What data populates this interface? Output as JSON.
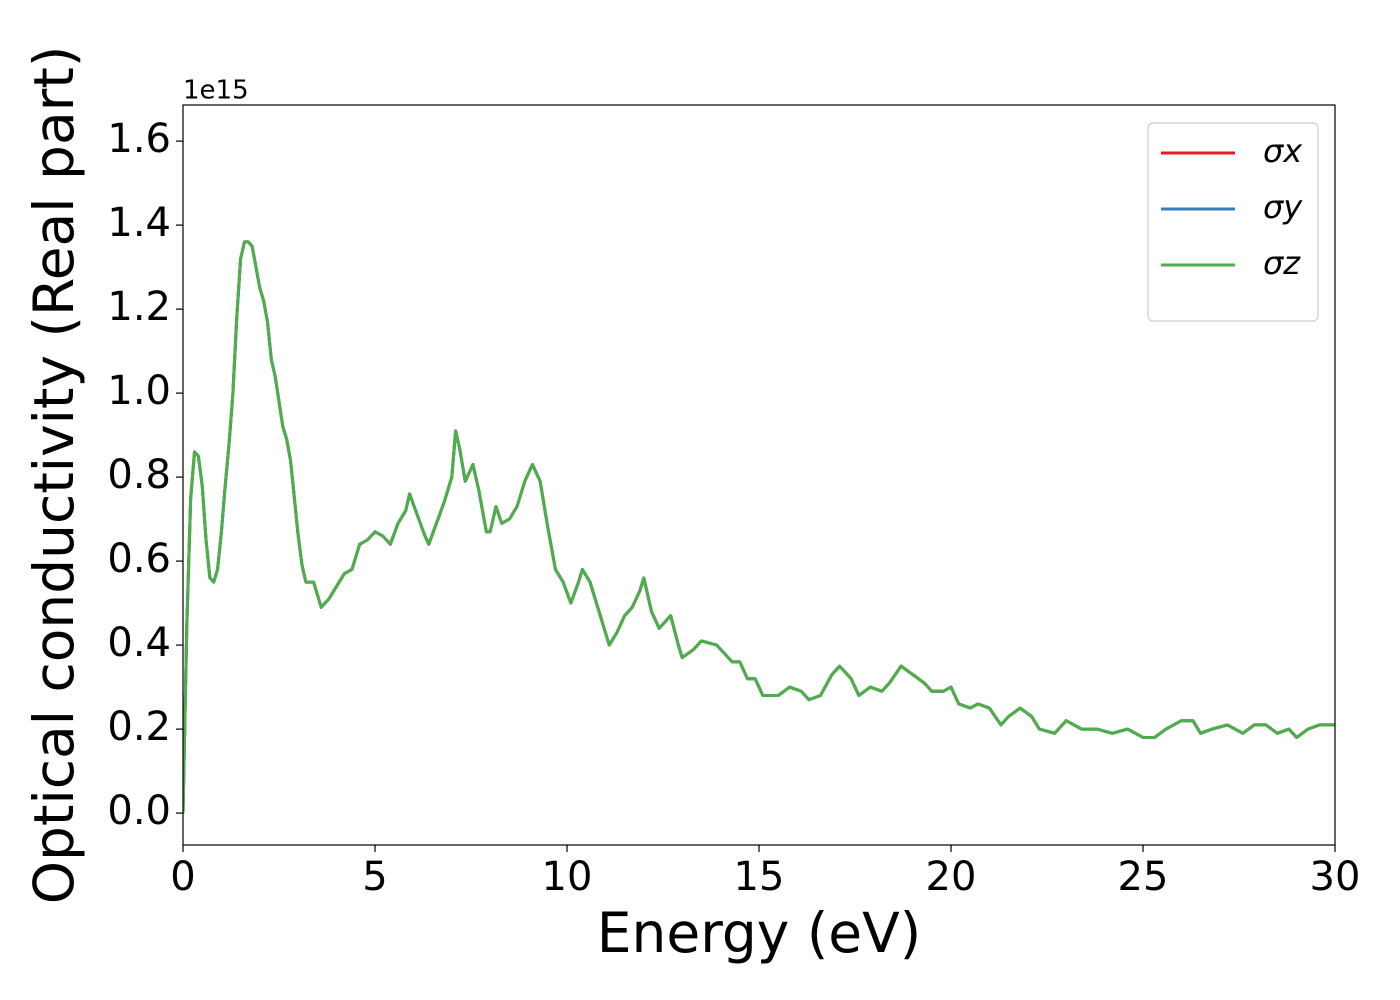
{
  "chart_data": {
    "type": "line",
    "xlabel": "Energy (eV)",
    "ylabel": "Optical conductivity (Real part)",
    "y_offset_label": "1e15",
    "x": [
      0,
      0.1,
      0.2,
      0.3,
      0.4,
      0.5,
      0.6,
      0.7,
      0.8,
      0.9,
      1.0,
      1.1,
      1.2,
      1.3,
      1.4,
      1.5,
      1.6,
      1.7,
      1.8,
      1.9,
      2.0,
      2.1,
      2.2,
      2.3,
      2.4,
      2.5,
      2.6,
      2.7,
      2.8,
      2.9,
      3.0,
      3.1,
      3.2,
      3.4,
      3.6,
      3.8,
      4.0,
      4.2,
      4.4,
      4.6,
      4.8,
      5.0,
      5.2,
      5.4,
      5.6,
      5.8,
      5.9,
      6.1,
      6.3,
      6.4,
      6.6,
      6.8,
      7.0,
      7.1,
      7.2,
      7.35,
      7.55,
      7.7,
      7.9,
      8.0,
      8.15,
      8.3,
      8.5,
      8.7,
      8.9,
      9.1,
      9.3,
      9.5,
      9.7,
      9.9,
      10.1,
      10.3,
      10.4,
      10.6,
      10.8,
      11.0,
      11.1,
      11.3,
      11.5,
      11.7,
      11.9,
      12.0,
      12.2,
      12.4,
      12.7,
      12.9,
      13.0,
      13.3,
      13.5,
      13.9,
      14.1,
      14.3,
      14.5,
      14.7,
      14.9,
      15.1,
      15.5,
      15.8,
      16.1,
      16.3,
      16.6,
      16.9,
      17.1,
      17.4,
      17.6,
      17.9,
      18.2,
      18.4,
      18.7,
      19.0,
      19.3,
      19.5,
      19.8,
      20.0,
      20.2,
      20.5,
      20.7,
      21.0,
      21.3,
      21.5,
      21.8,
      22.1,
      22.3,
      22.7,
      23.0,
      23.4,
      23.8,
      24.2,
      24.6,
      25.0,
      25.3,
      25.6,
      26.0,
      26.3,
      26.5,
      26.8,
      27.2,
      27.6,
      27.9,
      28.2,
      28.5,
      28.8,
      29.0,
      29.3,
      29.6,
      29.8,
      30.0
    ],
    "series": [
      {
        "name": "σx",
        "color": "#e41a1c",
        "values": [
          0,
          0.45,
          0.75,
          0.86,
          0.85,
          0.78,
          0.65,
          0.56,
          0.55,
          0.58,
          0.67,
          0.78,
          0.88,
          1.0,
          1.18,
          1.32,
          1.36,
          1.36,
          1.35,
          1.3,
          1.25,
          1.22,
          1.17,
          1.08,
          1.04,
          0.98,
          0.92,
          0.89,
          0.84,
          0.75,
          0.66,
          0.59,
          0.55,
          0.55,
          0.49,
          0.51,
          0.54,
          0.57,
          0.58,
          0.64,
          0.65,
          0.67,
          0.66,
          0.64,
          0.69,
          0.72,
          0.76,
          0.71,
          0.66,
          0.64,
          0.69,
          0.74,
          0.8,
          0.91,
          0.87,
          0.79,
          0.83,
          0.77,
          0.67,
          0.67,
          0.73,
          0.69,
          0.7,
          0.73,
          0.79,
          0.83,
          0.79,
          0.68,
          0.58,
          0.55,
          0.5,
          0.55,
          0.58,
          0.55,
          0.49,
          0.43,
          0.4,
          0.43,
          0.47,
          0.49,
          0.53,
          0.56,
          0.48,
          0.44,
          0.47,
          0.4,
          0.37,
          0.39,
          0.41,
          0.4,
          0.38,
          0.36,
          0.36,
          0.32,
          0.32,
          0.28,
          0.28,
          0.3,
          0.29,
          0.27,
          0.28,
          0.33,
          0.35,
          0.32,
          0.28,
          0.3,
          0.29,
          0.31,
          0.35,
          0.33,
          0.31,
          0.29,
          0.29,
          0.3,
          0.26,
          0.25,
          0.26,
          0.25,
          0.21,
          0.23,
          0.25,
          0.23,
          0.2,
          0.19,
          0.22,
          0.2,
          0.2,
          0.19,
          0.2,
          0.18,
          0.18,
          0.2,
          0.22,
          0.22,
          0.19,
          0.2,
          0.21,
          0.19,
          0.21,
          0.21,
          0.19,
          0.2,
          0.18,
          0.2,
          0.21,
          0.21,
          0.21
        ]
      },
      {
        "name": "σy",
        "color": "#377eb8",
        "values": [
          0,
          0.45,
          0.75,
          0.86,
          0.85,
          0.78,
          0.65,
          0.56,
          0.55,
          0.58,
          0.67,
          0.78,
          0.88,
          1.0,
          1.18,
          1.32,
          1.36,
          1.36,
          1.35,
          1.3,
          1.25,
          1.22,
          1.17,
          1.08,
          1.04,
          0.98,
          0.92,
          0.89,
          0.84,
          0.75,
          0.66,
          0.59,
          0.55,
          0.55,
          0.49,
          0.51,
          0.54,
          0.57,
          0.58,
          0.64,
          0.65,
          0.67,
          0.66,
          0.64,
          0.69,
          0.72,
          0.76,
          0.71,
          0.66,
          0.64,
          0.69,
          0.74,
          0.8,
          0.91,
          0.87,
          0.79,
          0.83,
          0.77,
          0.67,
          0.67,
          0.73,
          0.69,
          0.7,
          0.73,
          0.79,
          0.83,
          0.79,
          0.68,
          0.58,
          0.55,
          0.5,
          0.55,
          0.58,
          0.55,
          0.49,
          0.43,
          0.4,
          0.43,
          0.47,
          0.49,
          0.53,
          0.56,
          0.48,
          0.44,
          0.47,
          0.4,
          0.37,
          0.39,
          0.41,
          0.4,
          0.38,
          0.36,
          0.36,
          0.32,
          0.32,
          0.28,
          0.28,
          0.3,
          0.29,
          0.27,
          0.28,
          0.33,
          0.35,
          0.32,
          0.28,
          0.3,
          0.29,
          0.31,
          0.35,
          0.33,
          0.31,
          0.29,
          0.29,
          0.3,
          0.26,
          0.25,
          0.26,
          0.25,
          0.21,
          0.23,
          0.25,
          0.23,
          0.2,
          0.19,
          0.22,
          0.2,
          0.2,
          0.19,
          0.2,
          0.18,
          0.18,
          0.2,
          0.22,
          0.22,
          0.19,
          0.2,
          0.21,
          0.19,
          0.21,
          0.21,
          0.19,
          0.2,
          0.18,
          0.2,
          0.21,
          0.21,
          0.21
        ]
      },
      {
        "name": "σz",
        "color": "#4daf4a",
        "values": [
          0,
          0.45,
          0.75,
          0.86,
          0.85,
          0.78,
          0.65,
          0.56,
          0.55,
          0.58,
          0.67,
          0.78,
          0.88,
          1.0,
          1.18,
          1.32,
          1.36,
          1.36,
          1.35,
          1.3,
          1.25,
          1.22,
          1.17,
          1.08,
          1.04,
          0.98,
          0.92,
          0.89,
          0.84,
          0.75,
          0.66,
          0.59,
          0.55,
          0.55,
          0.49,
          0.51,
          0.54,
          0.57,
          0.58,
          0.64,
          0.65,
          0.67,
          0.66,
          0.64,
          0.69,
          0.72,
          0.76,
          0.71,
          0.66,
          0.64,
          0.69,
          0.74,
          0.8,
          0.91,
          0.87,
          0.79,
          0.83,
          0.77,
          0.67,
          0.67,
          0.73,
          0.69,
          0.7,
          0.73,
          0.79,
          0.83,
          0.79,
          0.68,
          0.58,
          0.55,
          0.5,
          0.55,
          0.58,
          0.55,
          0.49,
          0.43,
          0.4,
          0.43,
          0.47,
          0.49,
          0.53,
          0.56,
          0.48,
          0.44,
          0.47,
          0.4,
          0.37,
          0.39,
          0.41,
          0.4,
          0.38,
          0.36,
          0.36,
          0.32,
          0.32,
          0.28,
          0.28,
          0.3,
          0.29,
          0.27,
          0.28,
          0.33,
          0.35,
          0.32,
          0.28,
          0.3,
          0.29,
          0.31,
          0.35,
          0.33,
          0.31,
          0.29,
          0.29,
          0.3,
          0.26,
          0.25,
          0.26,
          0.25,
          0.21,
          0.23,
          0.25,
          0.23,
          0.2,
          0.19,
          0.22,
          0.2,
          0.2,
          0.19,
          0.2,
          0.18,
          0.18,
          0.2,
          0.22,
          0.22,
          0.19,
          0.2,
          0.21,
          0.19,
          0.21,
          0.21,
          0.19,
          0.2,
          0.18,
          0.2,
          0.21,
          0.21,
          0.21
        ]
      }
    ],
    "xlim": [
      0,
      30
    ],
    "xticks": [
      0,
      5,
      10,
      15,
      20,
      25,
      30
    ],
    "ylim": [
      -0.076,
      1.686
    ],
    "yticks": [
      {
        "value": 0,
        "label": "0.0"
      },
      0.2,
      0.4,
      0.6,
      0.8,
      {
        "value": 1,
        "label": "1.0"
      },
      1.2,
      1.4,
      1.6
    ],
    "grid": false,
    "legend": "upper right"
  }
}
